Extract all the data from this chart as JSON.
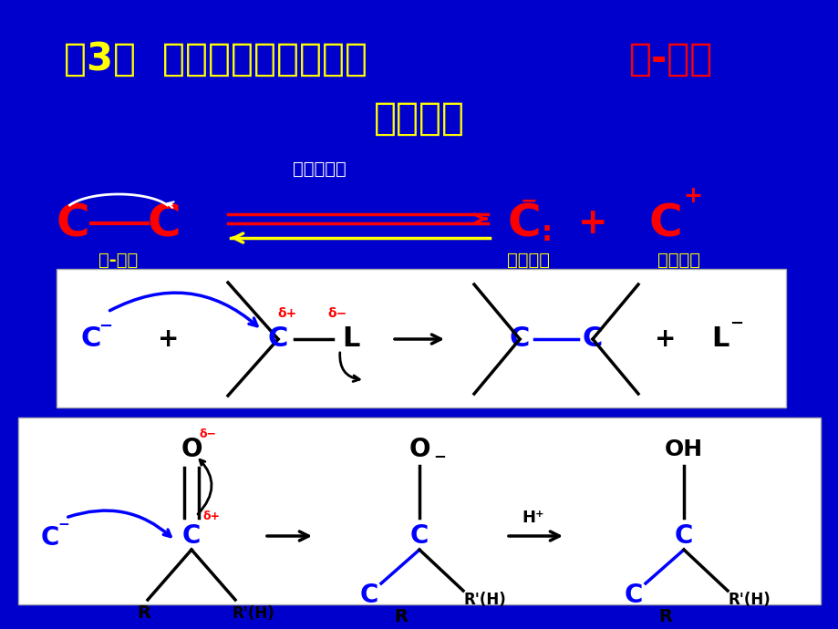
{
  "bg_color": "#0000CC",
  "title_yellow": "第3章  基于金属有机试剂的",
  "title_red": "碳-碳键",
  "title_line2": "形成方法",
  "ionic_label": "离子型切断",
  "cc_bond_label": "碳-碳键",
  "nucleophile_label": "碳亲核体",
  "electrophile_label": "碳亲电体"
}
